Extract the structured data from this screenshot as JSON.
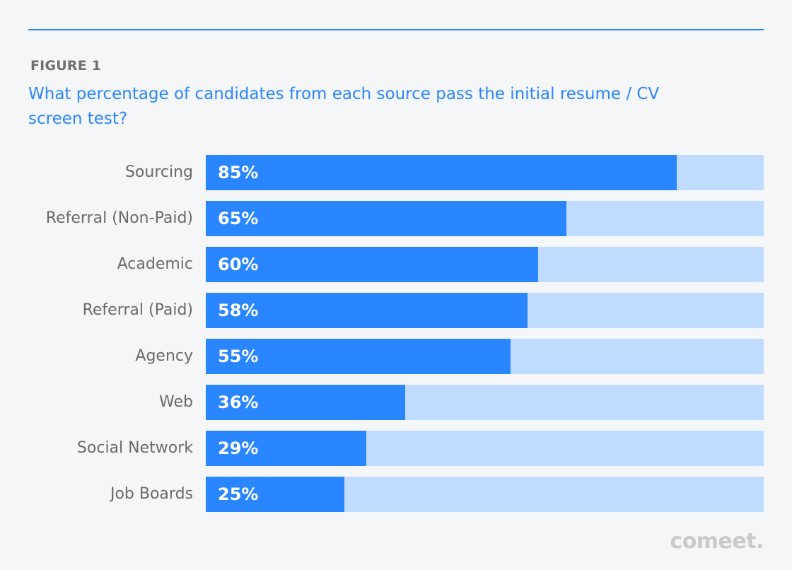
{
  "chart_data": {
    "type": "bar",
    "orientation": "horizontal",
    "figure_label": "FIGURE 1",
    "title": "What percentage of candidates from each source pass the initial resume / CV screen test?",
    "categories": [
      "Sourcing",
      "Referral (Non-Paid)",
      "Academic",
      "Referral (Paid)",
      "Agency",
      "Web",
      "Social Network",
      "Job Boards"
    ],
    "values": [
      85,
      65,
      60,
      58,
      55,
      36,
      29,
      25
    ],
    "value_labels": [
      "85%",
      "65%",
      "60%",
      "58%",
      "55%",
      "36%",
      "29%",
      "25%"
    ],
    "xlim": [
      0,
      100
    ],
    "xlabel": "",
    "ylabel": "",
    "grid": false,
    "colors": {
      "bar": "#2a86ff",
      "track": "#bfdbff",
      "title": "#2a86ff"
    }
  },
  "brand": {
    "logo_text": "comeet."
  }
}
